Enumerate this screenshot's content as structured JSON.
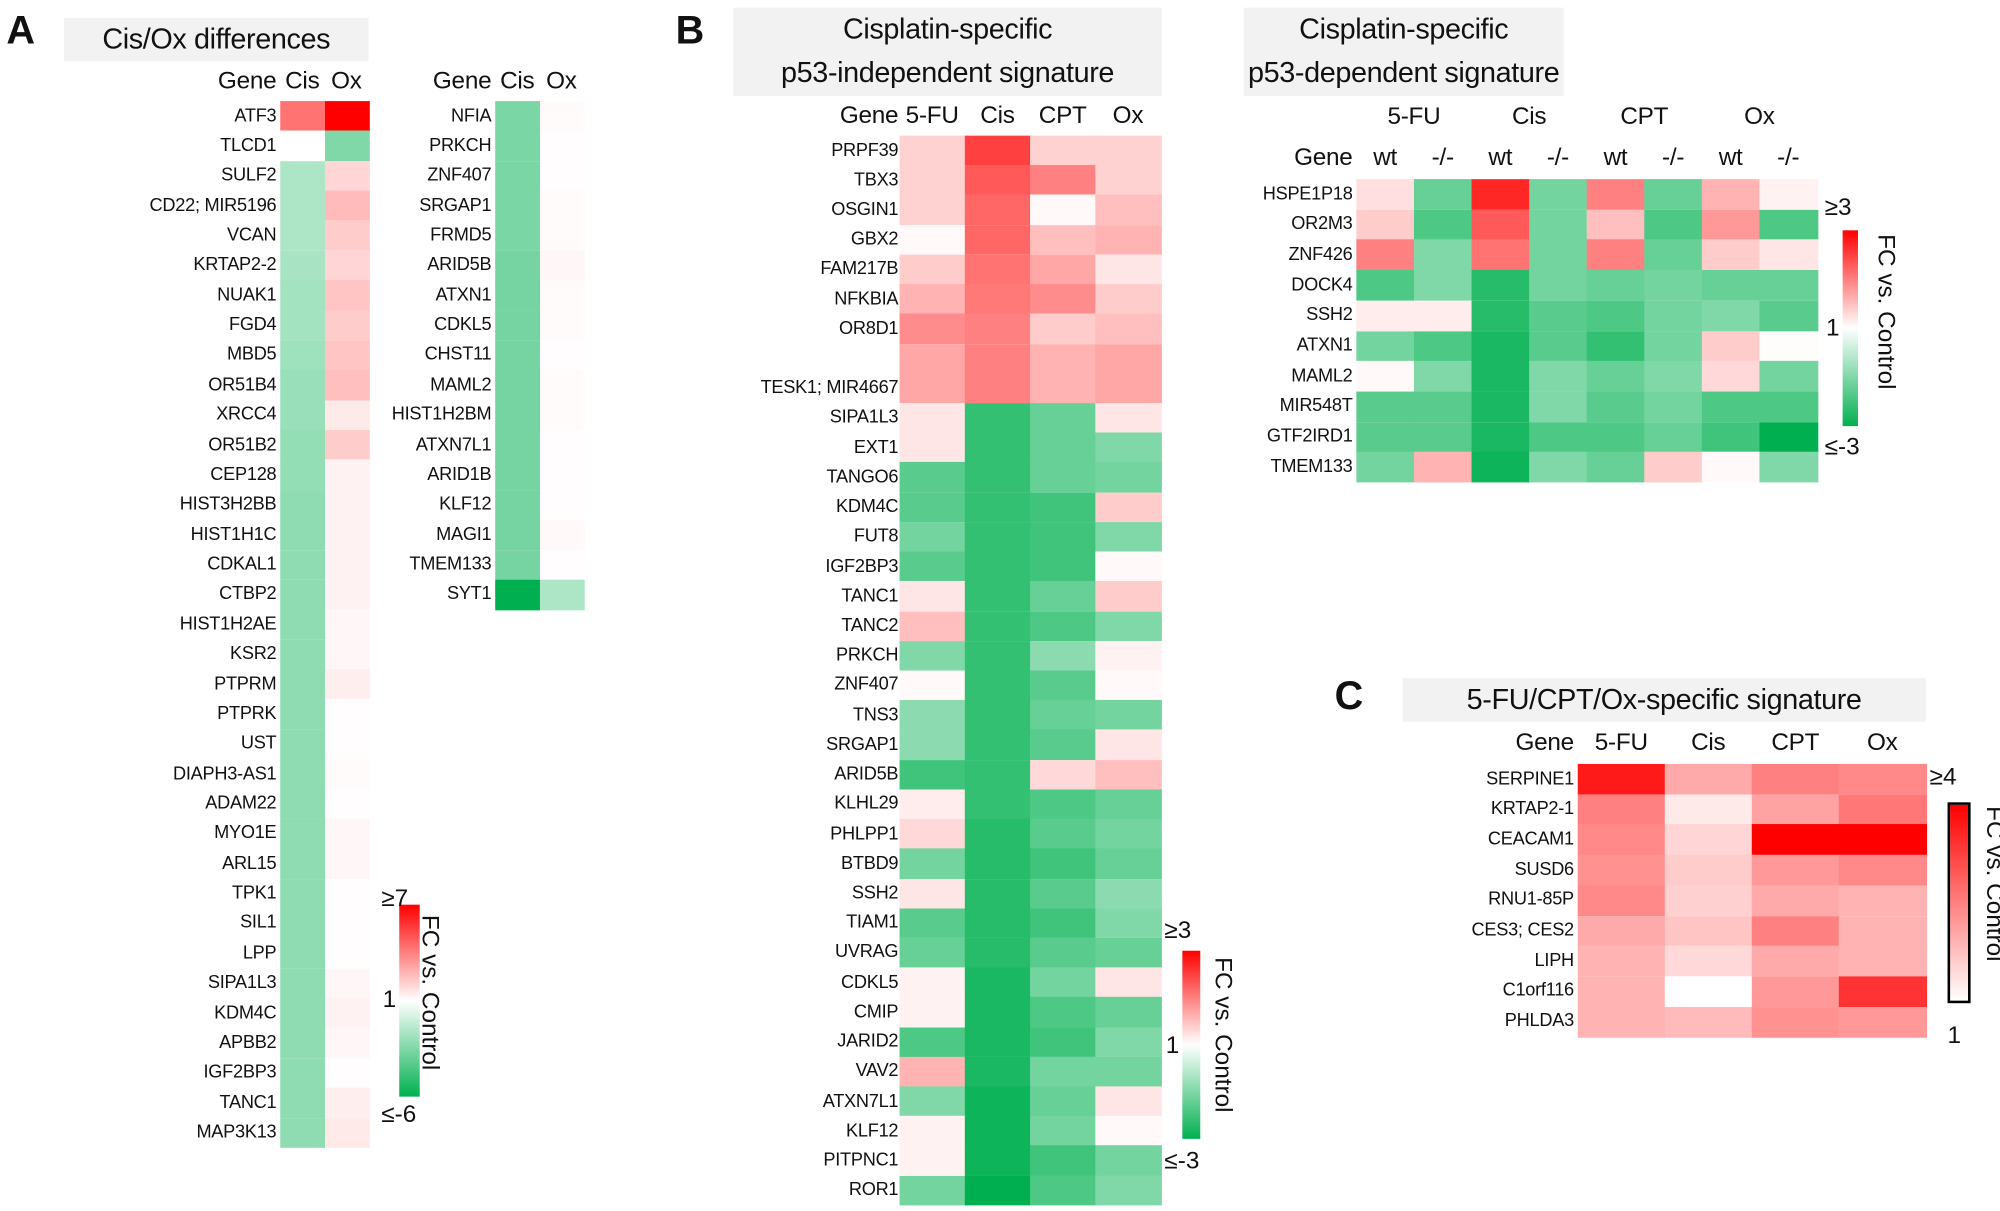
{
  "panel_labels": {
    "a": "A",
    "b": "B",
    "c": "C"
  },
  "colors": {
    "high": "#FF0000",
    "mid": "#FFFFFF",
    "low": "#00B050",
    "title_bg": "#F2F2F2"
  },
  "chart_data": [
    {
      "type": "heatmap",
      "panel": "A",
      "title": "Cis/Ox differences",
      "row_header": "Gene",
      "columns": [
        "Cis",
        "Ox"
      ],
      "rows": [
        "ATF3",
        "TLCD1",
        "SULF2",
        "CD22; MIR5196",
        "VCAN",
        "KRTAP2-2",
        "NUAK1",
        "FGD4",
        "MBD5",
        "OR51B4",
        "XRCC4",
        "OR51B2",
        "CEP128",
        "HIST3H2BB",
        "HIST1H1C",
        "CDKAL1",
        "CTBP2",
        "HIST1H2AE",
        "KSR2",
        "PTPRM",
        "PTPRK",
        "UST",
        "DIAPH3-AS1",
        "ADAM22",
        "MYO1E",
        "ARL15",
        "TPK1",
        "SIL1",
        "LPP",
        "SIPA1L3",
        "KDM4C",
        "APBB2",
        "IGF2BP3",
        "TANC1",
        "MAP3K13"
      ],
      "values": [
        [
          4.3,
          7
        ],
        [
          1.0,
          -3.5
        ],
        [
          -2.6,
          2.0
        ],
        [
          -2.6,
          2.6
        ],
        [
          -2.6,
          2.2
        ],
        [
          -2.7,
          2.0
        ],
        [
          -2.8,
          2.4
        ],
        [
          -2.8,
          2.2
        ],
        [
          -2.9,
          2.4
        ],
        [
          -3.0,
          2.5
        ],
        [
          -3.0,
          1.5
        ],
        [
          -3.1,
          2.2
        ],
        [
          -3.1,
          1.3
        ],
        [
          -3.2,
          1.3
        ],
        [
          -3.2,
          1.3
        ],
        [
          -3.2,
          1.3
        ],
        [
          -3.2,
          1.3
        ],
        [
          -3.2,
          1.2
        ],
        [
          -3.2,
          1.2
        ],
        [
          -3.2,
          1.4
        ],
        [
          -3.2,
          1.05
        ],
        [
          -3.2,
          1.05
        ],
        [
          -3.2,
          1.1
        ],
        [
          -3.2,
          1.05
        ],
        [
          -3.2,
          1.2
        ],
        [
          -3.2,
          1.2
        ],
        [
          -3.2,
          1.05
        ],
        [
          -3.2,
          1.05
        ],
        [
          -3.2,
          1.05
        ],
        [
          -3.2,
          1.2
        ],
        [
          -3.2,
          1.3
        ],
        [
          -3.2,
          1.2
        ],
        [
          -3.2,
          1.05
        ],
        [
          -3.2,
          1.4
        ],
        [
          -3.2,
          1.5
        ]
      ],
      "colorbar": {
        "title": "FC vs. Control",
        "max": 7,
        "min": -6,
        "max_label": "≥7",
        "mid_label": "1",
        "min_label": "≤-6"
      }
    },
    {
      "type": "heatmap",
      "panel": "A",
      "row_header": "Gene",
      "columns": [
        "Cis",
        "Ox"
      ],
      "rows": [
        "NFIA",
        "PRKCH",
        "ZNF407",
        "SRGAP1",
        "FRMD5",
        "ARID5B",
        "ATXN1",
        "CDKL5",
        "CHST11",
        "MAML2",
        "HIST1H2BM",
        "ATXN7L1",
        "ARID1B",
        "KLF12",
        "MAGI1",
        "TMEM133",
        "SYT1"
      ],
      "values": [
        [
          -3.6,
          1.1
        ],
        [
          -3.6,
          1.05
        ],
        [
          -3.6,
          1.05
        ],
        [
          -3.6,
          1.1
        ],
        [
          -3.6,
          1.1
        ],
        [
          -3.7,
          1.2
        ],
        [
          -3.7,
          1.1
        ],
        [
          -3.7,
          1.1
        ],
        [
          -3.7,
          1.05
        ],
        [
          -3.7,
          1.1
        ],
        [
          -3.7,
          1.1
        ],
        [
          -3.7,
          1.05
        ],
        [
          -3.7,
          1.05
        ],
        [
          -3.7,
          1.05
        ],
        [
          -3.7,
          1.15
        ],
        [
          -3.7,
          1.05
        ],
        [
          -6,
          -2.6
        ]
      ],
      "colorbar": {
        "max": 7,
        "min": -6
      }
    },
    {
      "type": "heatmap",
      "panel": "B",
      "title": "Cisplatin-specific\np53-independent signature",
      "title_lines": [
        "Cisplatin-specific",
        "p53-independent signature"
      ],
      "row_header": "Gene",
      "columns": [
        "5-FU",
        "Cis",
        "CPT",
        "Ox"
      ],
      "rows": [
        "PRPF39",
        "TBX3",
        "OSGIN1",
        "GBX2",
        "FAM217B",
        "NFKBIA",
        "OR8D1",
        "TESK1; MIR4667",
        "SIPA1L3",
        "EXT1",
        "TANGO6",
        "KDM4C",
        "FUT8",
        "IGF2BP3",
        "TANC1",
        "TANC2",
        "PRKCH",
        "ZNF407",
        "TNS3",
        "SRGAP1",
        "ARID5B",
        "KLHL29",
        "PHLPP1",
        "BTBD9",
        "SSH2",
        "TIAM1",
        "UVRAG",
        "CDKL5",
        "CMIP",
        "JARID2",
        "VAV2",
        "ATXN7L1",
        "KLF12",
        "PITPNC1",
        "ROR1"
      ],
      "values": [
        [
          1.35,
          2.5,
          1.35,
          1.35
        ],
        [
          1.35,
          2.3,
          2.0,
          1.35
        ],
        [
          1.35,
          2.2,
          1.05,
          1.5
        ],
        [
          1.05,
          2.2,
          1.5,
          1.6
        ],
        [
          1.4,
          2.1,
          1.7,
          1.2
        ],
        [
          1.6,
          2.05,
          1.9,
          1.4
        ],
        [
          1.9,
          2.0,
          1.4,
          1.5
        ],
        [
          1.7,
          2.0,
          1.6,
          1.7
        ],
        [
          1.2,
          -2.6,
          -2.2,
          1.2
        ],
        [
          1.2,
          -2.6,
          -2.2,
          -2.0
        ],
        [
          -2.3,
          -2.6,
          -2.2,
          -2.1
        ],
        [
          -2.3,
          -2.6,
          -2.5,
          1.4
        ],
        [
          -2.1,
          -2.6,
          -2.5,
          -2.0
        ],
        [
          -2.3,
          -2.6,
          -2.5,
          1.05
        ],
        [
          1.2,
          -2.6,
          -2.2,
          1.4
        ],
        [
          1.5,
          -2.6,
          -2.4,
          -2.0
        ],
        [
          -2.0,
          -2.6,
          -1.9,
          1.1
        ],
        [
          1.05,
          -2.6,
          -2.3,
          1.05
        ],
        [
          -1.9,
          -2.6,
          -2.2,
          -2.1
        ],
        [
          -1.9,
          -2.6,
          -2.3,
          1.2
        ],
        [
          -2.5,
          -2.6,
          1.3,
          1.5
        ],
        [
          1.15,
          -2.6,
          -2.4,
          -2.2
        ],
        [
          1.3,
          -2.7,
          -2.3,
          -2.1
        ],
        [
          -2.1,
          -2.7,
          -2.5,
          -2.2
        ],
        [
          1.2,
          -2.7,
          -2.3,
          -1.9
        ],
        [
          -2.3,
          -2.7,
          -2.5,
          -2.0
        ],
        [
          -2.2,
          -2.7,
          -2.3,
          -2.2
        ],
        [
          1.1,
          -2.8,
          -2.1,
          1.2
        ],
        [
          1.1,
          -2.8,
          -2.4,
          -2.2
        ],
        [
          -2.4,
          -2.8,
          -2.5,
          -2.0
        ],
        [
          1.6,
          -2.8,
          -2.1,
          -2.1
        ],
        [
          -2.0,
          -2.9,
          -2.2,
          1.2
        ],
        [
          1.1,
          -2.9,
          -2.1,
          1.05
        ],
        [
          1.1,
          -2.9,
          -2.5,
          -2.1
        ],
        [
          -2.1,
          -3.0,
          -2.4,
          -2.0
        ]
      ],
      "colorbar": {
        "title": "FC vs. Control",
        "max": 3,
        "min": -3,
        "max_label": "≥3",
        "mid_label": "1",
        "min_label": "≤-3"
      }
    },
    {
      "type": "heatmap",
      "panel": "B",
      "title_lines": [
        "Cisplatin-specific",
        "p53-dependent signature"
      ],
      "row_header": "Gene",
      "column_groups": [
        "5-FU",
        "Cis",
        "CPT",
        "Ox"
      ],
      "columns": [
        "wt",
        "-/-",
        "wt",
        "-/-",
        "wt",
        "-/-",
        "wt",
        "-/-"
      ],
      "rows": [
        "HSPE1P18",
        "OR2M3",
        "ZNF426",
        "DOCK4",
        "SSH2",
        "ATXN1",
        "MAML2",
        "MIR548T",
        "GTF2IRD1",
        "TMEM133"
      ],
      "values": [
        [
          1.25,
          -2.2,
          2.7,
          -2.1,
          2.0,
          -2.2,
          1.6,
          1.1
        ],
        [
          1.4,
          -2.4,
          2.3,
          -2.1,
          1.5,
          -2.4,
          1.8,
          -2.4
        ],
        [
          2.0,
          -2.0,
          2.1,
          -2.1,
          2.0,
          -2.2,
          1.4,
          1.2
        ],
        [
          -2.4,
          -2.0,
          -2.7,
          -2.1,
          -2.2,
          -2.1,
          -2.2,
          -2.2
        ],
        [
          1.15,
          1.15,
          -2.7,
          -2.3,
          -2.4,
          -2.1,
          -2.0,
          -2.3
        ],
        [
          -2.1,
          -2.4,
          -2.8,
          -2.3,
          -2.6,
          -2.1,
          1.4,
          1.02
        ],
        [
          1.05,
          -2.0,
          -2.8,
          -2.0,
          -2.2,
          -2.0,
          1.3,
          -2.1
        ],
        [
          -2.3,
          -2.3,
          -2.8,
          -2.0,
          -2.3,
          -2.1,
          -2.4,
          -2.4
        ],
        [
          -2.3,
          -2.3,
          -2.8,
          -2.4,
          -2.4,
          -2.2,
          -2.5,
          -3.0
        ],
        [
          -2.1,
          1.6,
          -2.9,
          -2.0,
          -2.2,
          1.4,
          1.05,
          -2.0
        ]
      ],
      "colorbar": {
        "title": "FC vs. Control",
        "max": 3,
        "min": -3,
        "max_label": "≥3",
        "mid_label": "1",
        "min_label": "≤-3"
      }
    },
    {
      "type": "heatmap",
      "panel": "C",
      "title_lines": [
        "5-FU/CPT/Ox-specific signature"
      ],
      "row_header": "Gene",
      "columns": [
        "5-FU",
        "Cis",
        "CPT",
        "Ox"
      ],
      "rows": [
        "SERPINE1",
        "KRTAP2-1",
        "CEACAM1",
        "SUSD6",
        "RNU1-85P",
        "CES3; CES2",
        "LIPH",
        "C1orf116",
        "PHLDA3"
      ],
      "values": [
        [
          3.7,
          2.0,
          2.5,
          2.4
        ],
        [
          2.5,
          1.25,
          2.1,
          2.6
        ],
        [
          2.4,
          1.5,
          4.0,
          4.0
        ],
        [
          2.3,
          1.6,
          2.2,
          2.4
        ],
        [
          2.4,
          1.55,
          2.0,
          1.9
        ],
        [
          2.0,
          1.7,
          2.5,
          1.9
        ],
        [
          1.9,
          1.45,
          2.0,
          1.9
        ],
        [
          1.9,
          1.0,
          2.2,
          3.4
        ],
        [
          1.9,
          1.8,
          2.3,
          2.2
        ]
      ],
      "colorbar": {
        "title": "FC vs. Control",
        "max": 4,
        "min": 1,
        "max_label": "≥4",
        "min_label": "1"
      }
    }
  ]
}
